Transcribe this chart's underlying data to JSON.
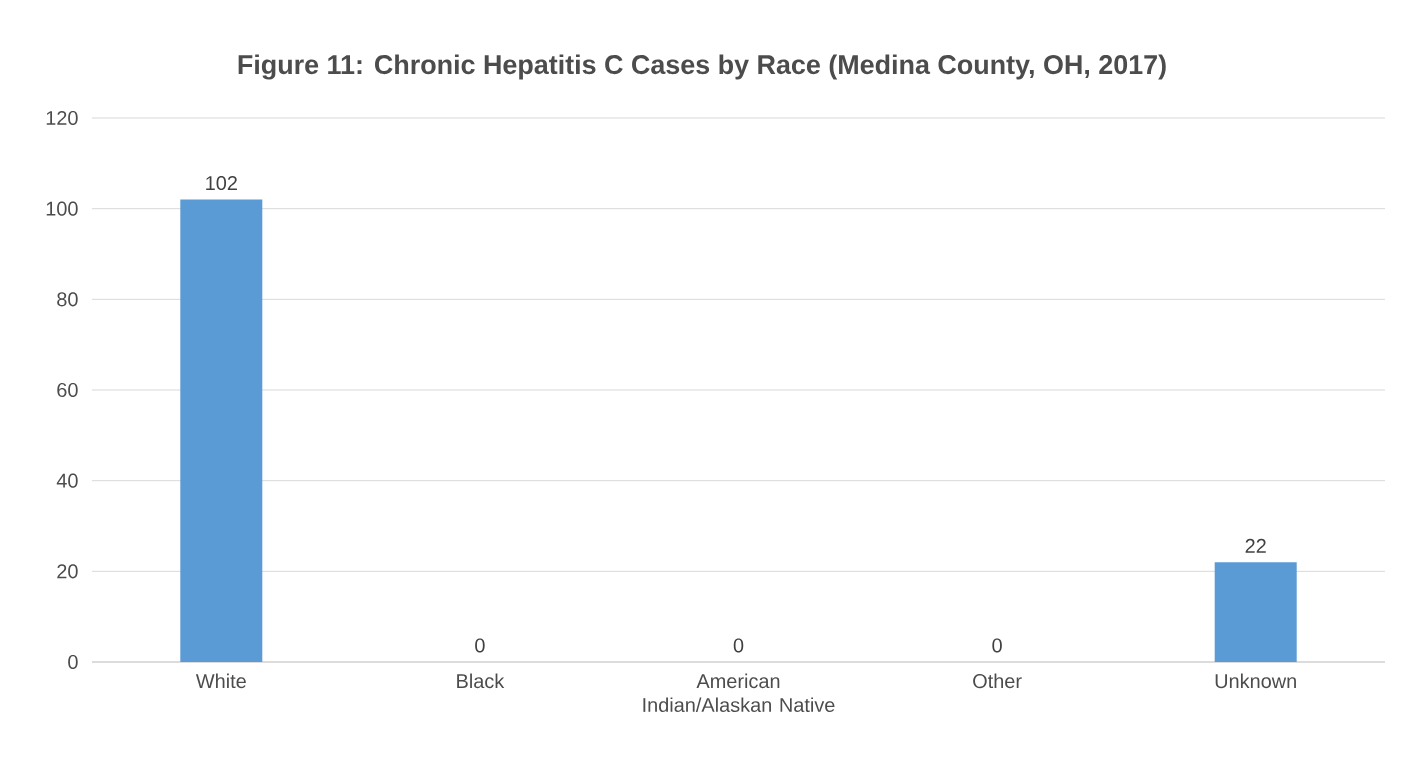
{
  "chart_data": {
    "type": "bar",
    "title": "Figure 11:  Chronic Hepatitis C Cases by Race (Medina County, OH, 2017)",
    "categories": [
      "White",
      "Black",
      "American Indian/Alaskan Native",
      "Other",
      "Unknown"
    ],
    "values": [
      102,
      0,
      0,
      0,
      22
    ],
    "color": "#5b9bd5",
    "ylim": [
      0,
      120
    ],
    "yticks": [
      0,
      20,
      40,
      60,
      80,
      100,
      120
    ],
    "grid": "y",
    "data_labels": true
  }
}
